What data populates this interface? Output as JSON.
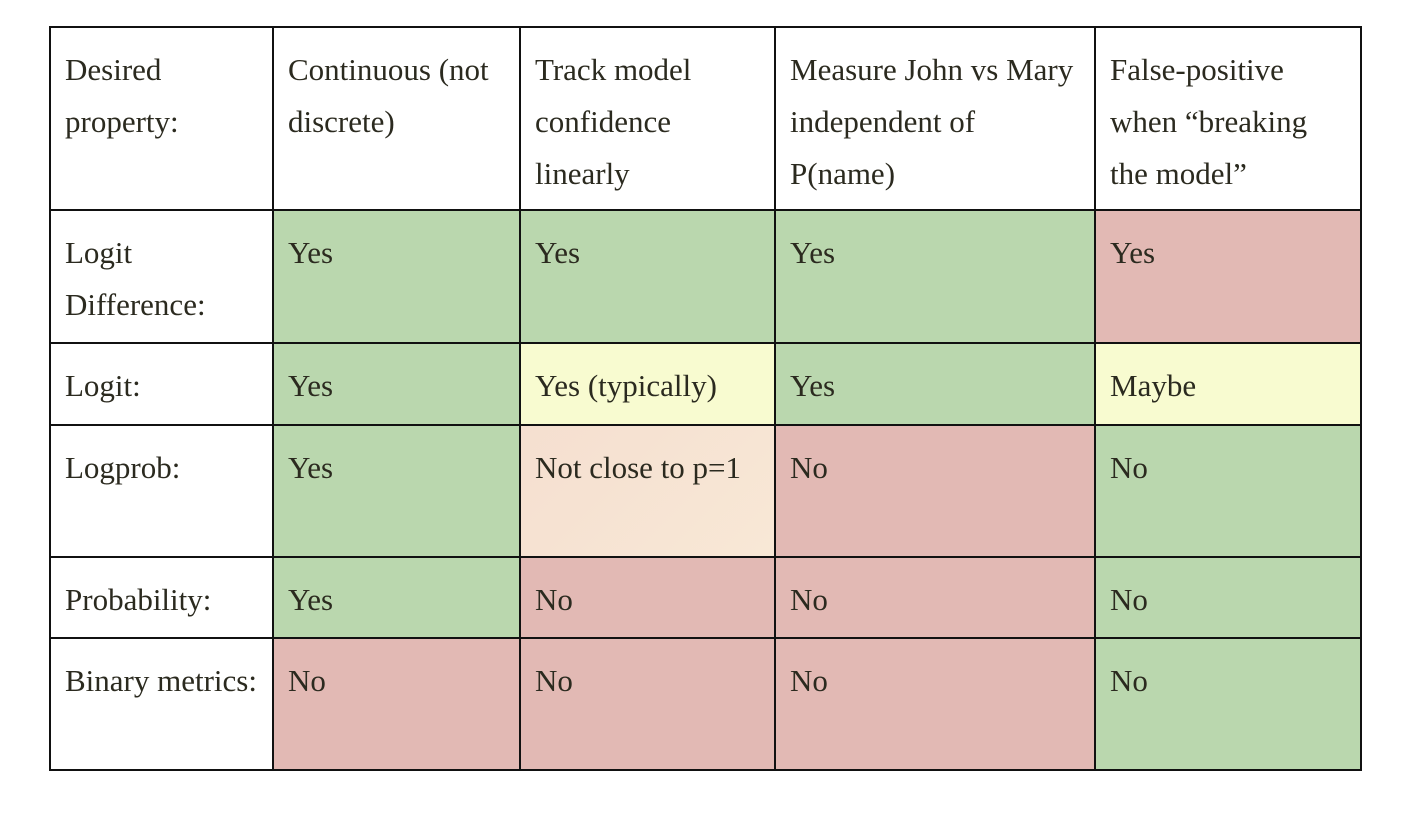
{
  "colors": {
    "green": "#bad7ae",
    "red": "#e2b9b4",
    "yellow": "#f8fbd0",
    "peach": "#f6e2d2",
    "white": "#ffffff"
  },
  "table": {
    "header": [
      "Desired property:",
      "Continuous (not discrete)",
      "Track model confidence linearly",
      "Measure John vs Mary independent of P(name)",
      "False-positive when “breaking the model”"
    ],
    "rows": [
      {
        "label": "Logit Difference:",
        "cells": [
          {
            "text": "Yes",
            "color": "green"
          },
          {
            "text": "Yes",
            "color": "green"
          },
          {
            "text": "Yes",
            "color": "green"
          },
          {
            "text": "Yes",
            "color": "red"
          }
        ]
      },
      {
        "label": "Logit:",
        "cells": [
          {
            "text": "Yes",
            "color": "green"
          },
          {
            "text": "Yes (typically)",
            "color": "yellow"
          },
          {
            "text": "Yes",
            "color": "green"
          },
          {
            "text": "Maybe",
            "color": "yellow"
          }
        ]
      },
      {
        "label": "Logprob:",
        "cells": [
          {
            "text": "Yes",
            "color": "green"
          },
          {
            "text": "Not close to p=1",
            "color": "peach"
          },
          {
            "text": "No",
            "color": "red"
          },
          {
            "text": "No",
            "color": "green"
          }
        ]
      },
      {
        "label": "Probability:",
        "cells": [
          {
            "text": "Yes",
            "color": "green"
          },
          {
            "text": "No",
            "color": "red"
          },
          {
            "text": "No",
            "color": "red"
          },
          {
            "text": "No",
            "color": "green"
          }
        ]
      },
      {
        "label": "Binary metrics:",
        "cells": [
          {
            "text": "No",
            "color": "red"
          },
          {
            "text": "No",
            "color": "red"
          },
          {
            "text": "No",
            "color": "red"
          },
          {
            "text": "No",
            "color": "green"
          }
        ]
      }
    ]
  }
}
